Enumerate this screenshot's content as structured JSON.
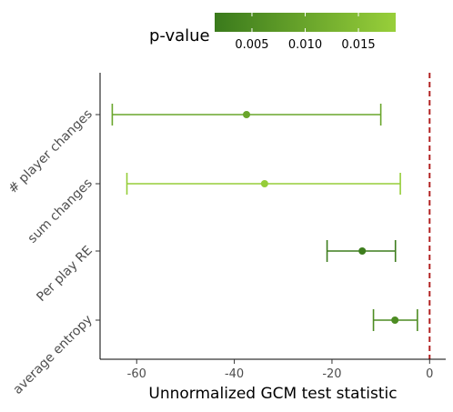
{
  "chart_data": {
    "type": "errorbar",
    "title": "",
    "xlabel": "Unnormalized GCM test statistic",
    "ylabel": "",
    "xlim": [
      -67.5,
      3.3
    ],
    "xticks": [
      -60,
      -40,
      -20,
      0
    ],
    "xtick_labels": [
      "-60",
      "-40",
      "-20",
      "0"
    ],
    "reference_line": {
      "x": 0,
      "color": "#b22222",
      "style": "dashed"
    },
    "grid": false,
    "legend": {
      "title": "p-value",
      "placement": "top",
      "type": "colorbar",
      "range": [
        0.0015,
        0.0185
      ],
      "ticks": [
        0.005,
        0.01,
        0.015
      ],
      "tick_labels": [
        "0.005",
        "0.010",
        "0.015"
      ],
      "low_color": "#3a7a1c",
      "high_color": "#98cf3a"
    },
    "categories": [
      "# player changes",
      "sum changes",
      "Per play RE",
      "average entropy"
    ],
    "points": [
      {
        "label": "# player changes",
        "estimate": -37.5,
        "lower": -65,
        "upper": -10,
        "p_value": 0.01
      },
      {
        "label": "sum changes",
        "estimate": -33.8,
        "lower": -62,
        "upper": -6,
        "p_value": 0.018
      },
      {
        "label": "Per play RE",
        "estimate": -13.8,
        "lower": -21,
        "upper": -7,
        "p_value": 0.002
      },
      {
        "label": "average entropy",
        "estimate": -7.1,
        "lower": -11.5,
        "upper": -2.5,
        "p_value": 0.005
      }
    ]
  }
}
